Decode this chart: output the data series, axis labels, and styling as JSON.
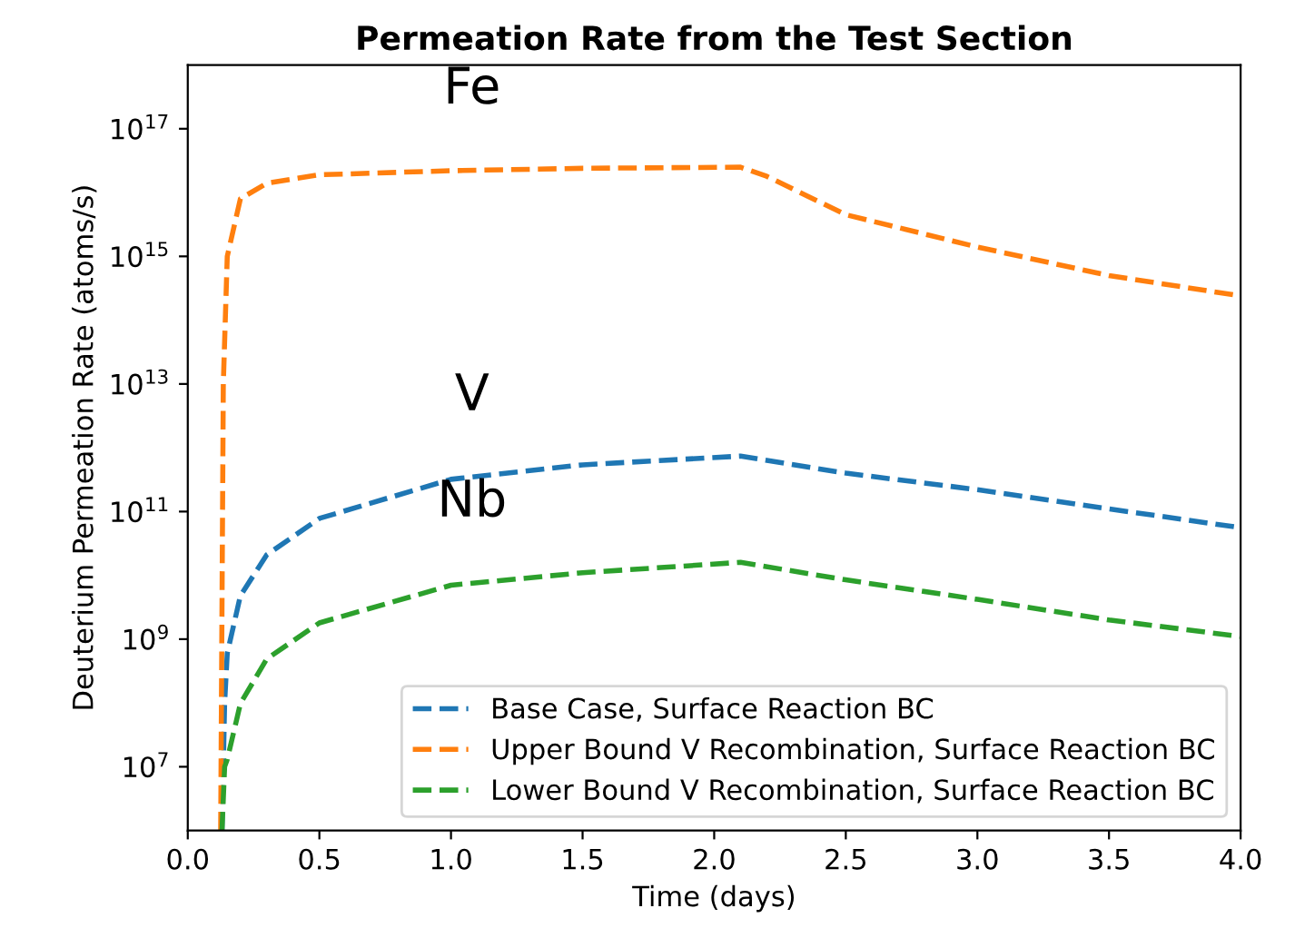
{
  "chart_data": {
    "type": "line",
    "title": "Permeation Rate from the Test Section",
    "xlabel": "Time (days)",
    "ylabel": "Deuterium Permeation Rate (atoms/s)",
    "log": "y",
    "xlim": [
      0,
      4
    ],
    "ylim": [
      1000000.0,
      1e+18
    ],
    "xticks": [
      {
        "value": 0,
        "label": "0.0"
      },
      {
        "value": 0.5,
        "label": "0.5"
      },
      {
        "value": 1,
        "label": "1.0"
      },
      {
        "value": 1.5,
        "label": "1.5"
      },
      {
        "value": 2,
        "label": "2.0"
      },
      {
        "value": 2.5,
        "label": "2.5"
      },
      {
        "value": 3,
        "label": "3.0"
      },
      {
        "value": 3.5,
        "label": "3.5"
      },
      {
        "value": 4,
        "label": "4.0"
      }
    ],
    "yticks": [
      {
        "value": 10000000.0,
        "label": "10$^{7}$"
      },
      {
        "value": 1000000000.0,
        "label": "10$^{9}$"
      },
      {
        "value": 100000000000.0,
        "label": "10$^{11}$"
      },
      {
        "value": 10000000000000.0,
        "label": "10$^{13}$"
      },
      {
        "value": 1000000000000000.0,
        "label": "10$^{15}$"
      },
      {
        "value": 1e+17,
        "label": "10$^{17}$"
      }
    ],
    "grid": false,
    "legend": "bottom right",
    "line_style": "dashed",
    "marker": "none",
    "series": [
      {
        "name": "Base Case, Surface Reaction BC",
        "color": "#1f77b4",
        "x": [
          0.13,
          0.14,
          0.15,
          0.2,
          0.3,
          0.5,
          1.0,
          1.5,
          2.1,
          2.5,
          3.0,
          3.5,
          4.0
        ],
        "values": [
          1000000.0,
          100000000.0,
          600000000.0,
          4800000000.0,
          21000000000.0,
          78000000000.0,
          320000000000.0,
          540000000000.0,
          740000000000.0,
          400000000000.0,
          220000000000.0,
          110000000000.0,
          56000000000.0
        ]
      },
      {
        "name": "Upper Bound V Recombination, Surface Reaction BC",
        "color": "#ff7f0e",
        "x": [
          0.125,
          0.135,
          0.15,
          0.2,
          0.3,
          0.5,
          1.0,
          1.5,
          2.1,
          2.2,
          2.5,
          3.0,
          3.5,
          4.0
        ],
        "values": [
          1000000.0,
          10000000000000.0,
          1000000000000000.0,
          8000000000000000.0,
          1.4e+16,
          1.9e+16,
          2.2e+16,
          2.4e+16,
          2.5e+16,
          1.8e+16,
          4500000000000000.0,
          1400000000000000.0,
          500000000000000.0,
          240000000000000.0
        ]
      },
      {
        "name": "Lower Bound V Recombination, Surface Reaction BC",
        "color": "#2ca02c",
        "x": [
          0.13,
          0.14,
          0.15,
          0.2,
          0.3,
          0.5,
          1.0,
          1.5,
          2.1,
          2.5,
          3.0,
          3.5,
          4.0
        ],
        "values": [
          1000000.0,
          10000000.0,
          13000000.0,
          98000000.0,
          490000000.0,
          1800000000.0,
          7000000000.0,
          11000000000.0,
          16000000000.0,
          8500000000.0,
          4200000000.0,
          2000000000.0,
          1100000000.0
        ]
      }
    ],
    "annotations": [
      "V",
      "Fe",
      "Nb"
    ]
  }
}
